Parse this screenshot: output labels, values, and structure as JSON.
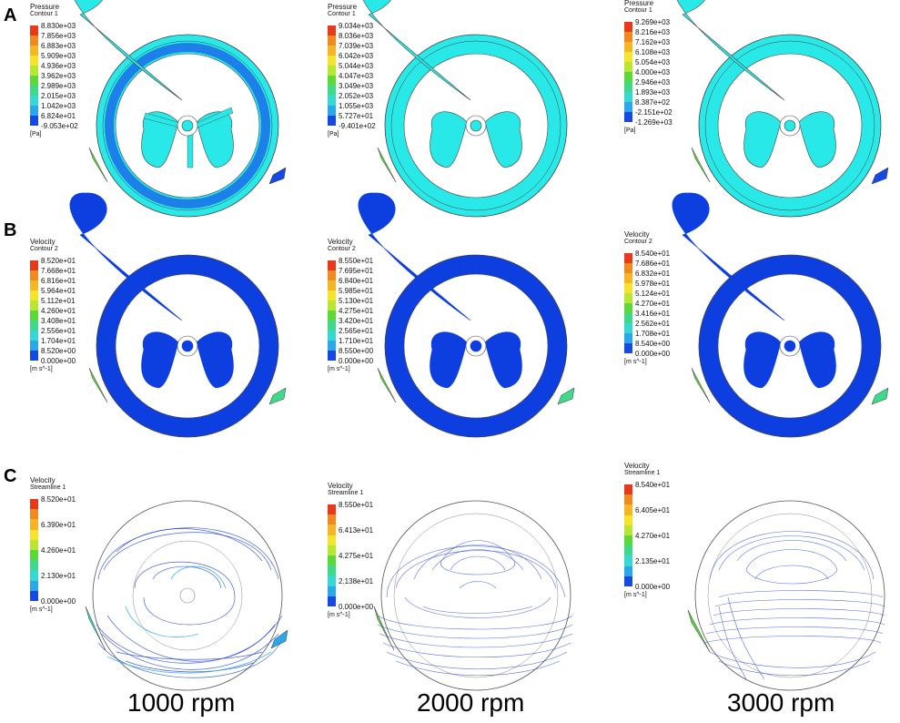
{
  "row_labels": [
    "A",
    "B",
    "C"
  ],
  "rpm_labels": [
    "1000 rpm",
    "2000 rpm",
    "3000 rpm"
  ],
  "colors": {
    "cyan": "#29e8e8",
    "blue": "#0d3fe0",
    "streamline": "#1c3fd8"
  },
  "legend_palette": [
    "#e8391a",
    "#f08a1e",
    "#f6b623",
    "#f5e52a",
    "#b9e630",
    "#5bd83a",
    "#3ed98a",
    "#33d9d2",
    "#2aa8e9",
    "#1449e4"
  ],
  "legends": {
    "A": [
      {
        "title": "Pressure",
        "subtitle": "Contour 1",
        "unit": "[Pa]",
        "values": [
          "8.830e+03",
          "7.856e+03",
          "6.883e+03",
          "5.909e+03",
          "4.936e+03",
          "3.962e+03",
          "2.989e+03",
          "2.015e+03",
          "1.042e+03",
          "6.824e+01",
          "-9.053e+02"
        ]
      },
      {
        "title": "Pressure",
        "subtitle": "Contour 1",
        "unit": "[Pa]",
        "values": [
          "9.034e+03",
          "8.036e+03",
          "7.039e+03",
          "6.042e+03",
          "5.044e+03",
          "4.047e+03",
          "3.049e+03",
          "2.052e+03",
          "1.055e+03",
          "5.727e+01",
          "-9.401e+02"
        ]
      },
      {
        "title": "Pressure",
        "subtitle": "Contour 1",
        "unit": "[Pa]",
        "values": [
          "9.269e+03",
          "8.216e+03",
          "7.162e+03",
          "6.108e+03",
          "5.054e+03",
          "4.000e+03",
          "2.946e+03",
          "1.893e+03",
          "8.387e+02",
          "-2.151e+02",
          "-1.269e+03"
        ]
      }
    ],
    "B": [
      {
        "title": "Velocity",
        "subtitle": "Contour 2",
        "unit": "[m s^-1]",
        "values": [
          "8.520e+01",
          "7.668e+01",
          "6.816e+01",
          "5.964e+01",
          "5.112e+01",
          "4.260e+01",
          "3.408e+01",
          "2.556e+01",
          "1.704e+01",
          "8.520e+00",
          "0.000e+00"
        ]
      },
      {
        "title": "Velocity",
        "subtitle": "Contour 2",
        "unit": "[m s^-1]",
        "values": [
          "8.550e+01",
          "7.695e+01",
          "6.840e+01",
          "5.985e+01",
          "5.130e+01",
          "4.275e+01",
          "3.420e+01",
          "2.565e+01",
          "1.710e+01",
          "8.550e+00",
          "0.000e+00"
        ]
      },
      {
        "title": "Velocity",
        "subtitle": "Contour 2",
        "unit": "[m s^-1]",
        "values": [
          "8.540e+01",
          "7.686e+01",
          "6.832e+01",
          "5.978e+01",
          "5.124e+01",
          "4.270e+01",
          "3.416e+01",
          "2.562e+01",
          "1.708e+01",
          "8.540e+00",
          "0.000e+00"
        ]
      }
    ],
    "C": [
      {
        "title": "Velocity",
        "subtitle": "Streamline 1",
        "unit": "[m s^-1]",
        "values": [
          "8.520e+01",
          "6.390e+01",
          "4.260e+01",
          "2.130e+01",
          "0.000e+00"
        ]
      },
      {
        "title": "Velocity",
        "subtitle": "Streamline 1",
        "unit": "[m s^-1]",
        "values": [
          "8.550e+01",
          "6.413e+01",
          "4.275e+01",
          "2.138e+01",
          "0.000e+00"
        ]
      },
      {
        "title": "Velocity",
        "subtitle": "Streamline 1",
        "unit": "[m s^-1]",
        "values": [
          "8.540e+01",
          "6.405e+01",
          "4.270e+01",
          "2.135e+01",
          "0.000e+00"
        ]
      }
    ]
  }
}
